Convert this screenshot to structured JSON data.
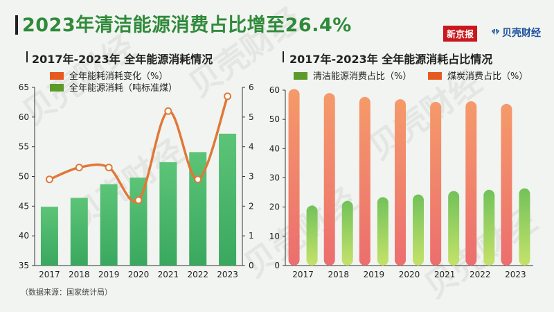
{
  "header": {
    "title": "2023年清洁能源消费占比增至26.4%",
    "logo_left": "新京报",
    "logo_right": "贝壳财经",
    "watermark": "贝壳财经"
  },
  "source_note": "（数据来源：国家统计局）",
  "colors": {
    "title_green": "#2f8a3a",
    "bar_green": "#4cb568",
    "line_orange": "#e07838",
    "coal_bar": "#f08a5d",
    "clean_bar": "#9ed05a"
  },
  "chart_data": [
    {
      "type": "bar+line",
      "title": "2017年-2023年 全年能源消耗情况",
      "categories": [
        "2017",
        "2018",
        "2019",
        "2020",
        "2021",
        "2022",
        "2023"
      ],
      "series": [
        {
          "name": "全年能耗消耗变化（%）",
          "kind": "line",
          "axis": "right",
          "values": [
            2.9,
            3.3,
            3.3,
            2.2,
            5.2,
            2.9,
            5.7
          ]
        },
        {
          "name": "全年能源消耗（吨标准煤）",
          "kind": "bar",
          "axis": "left",
          "values": [
            44.9,
            46.4,
            48.7,
            49.8,
            52.4,
            54.1,
            57.2
          ]
        }
      ],
      "y_left": {
        "lim": [
          35,
          65
        ],
        "ticks": [
          35,
          40,
          45,
          50,
          55,
          60,
          65
        ]
      },
      "y_right": {
        "lim": [
          0,
          6
        ],
        "ticks": [
          0,
          1,
          2,
          3,
          4,
          5,
          6
        ]
      }
    },
    {
      "type": "bar",
      "title": "2017年-2023年 全年能源消耗占比情况",
      "categories": [
        "2017",
        "2018",
        "2019",
        "2020",
        "2021",
        "2022",
        "2023"
      ],
      "series": [
        {
          "name": "清洁能源消费占比（%）",
          "values": [
            20.5,
            22.1,
            23.4,
            24.3,
            25.5,
            25.9,
            26.4
          ]
        },
        {
          "name": "煤炭消费占比（%）",
          "values": [
            60.4,
            59.0,
            57.7,
            56.9,
            56.0,
            56.2,
            55.3
          ]
        }
      ],
      "ylim": [
        0,
        60
      ],
      "yticks": [
        0,
        10,
        20,
        30,
        40,
        50,
        60
      ]
    }
  ]
}
